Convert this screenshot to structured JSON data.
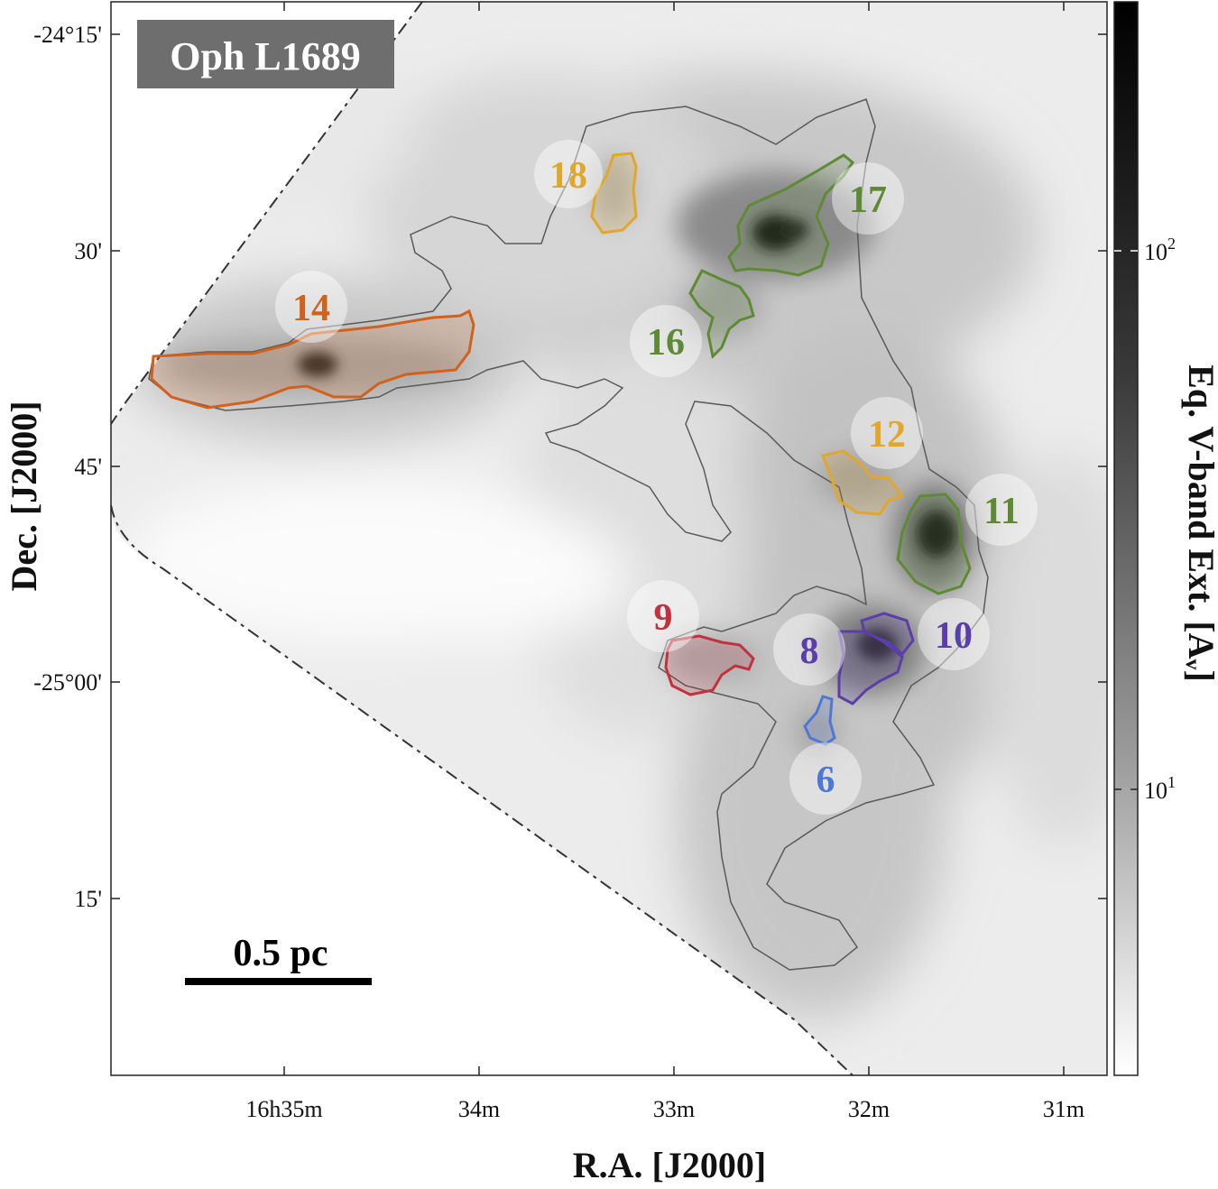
{
  "chart_data": {
    "type": "heatmap",
    "title": "Oph L1689",
    "xlabel": "R.A. [J2000]",
    "ylabel": "Dec. [J2000]",
    "colorbar_label": "Eq. V-band Ext. [Aᵥ]",
    "colorbar_scale": "log",
    "colormap": "white-to-black (gray)",
    "x_ticks": [
      "16h35m",
      "34m",
      "33m",
      "32m",
      "31m"
    ],
    "y_ticks": [
      "-24°15'",
      "30'",
      "45'",
      "-25°00'",
      "15'"
    ],
    "colorbar_ticks": [
      {
        "label": "10",
        "exponent": "2",
        "value": 100
      },
      {
        "label": "10",
        "exponent": "1",
        "value": 10
      }
    ],
    "scale_bar": "0.5 pc",
    "regions": [
      {
        "id": "6",
        "color": "#4f78d6"
      },
      {
        "id": "8",
        "color": "#5a3fa8"
      },
      {
        "id": "9",
        "color": "#c1323f"
      },
      {
        "id": "10",
        "color": "#5a3fa8"
      },
      {
        "id": "11",
        "color": "#5f8a35"
      },
      {
        "id": "12",
        "color": "#e0a72a"
      },
      {
        "id": "14",
        "color": "#d0621d"
      },
      {
        "id": "16",
        "color": "#5f8a35"
      },
      {
        "id": "17",
        "color": "#5f8a35"
      },
      {
        "id": "18",
        "color": "#e0a72a"
      }
    ]
  }
}
